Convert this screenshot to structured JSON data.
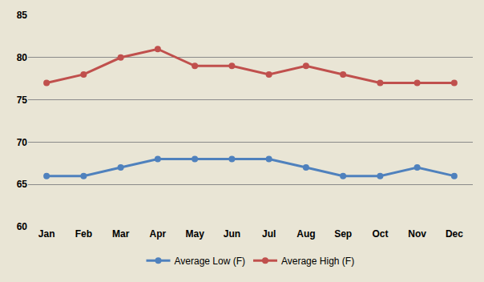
{
  "chart_data": {
    "type": "line",
    "categories": [
      "Jan",
      "Feb",
      "Mar",
      "Apr",
      "May",
      "Jun",
      "Jul",
      "Aug",
      "Sep",
      "Oct",
      "Nov",
      "Dec"
    ],
    "series": [
      {
        "name": "Average Low (F)",
        "color": "#4f81bd",
        "marker": "circle",
        "line_style": "solid",
        "values": [
          66,
          66,
          67,
          68,
          68,
          68,
          68,
          67,
          66,
          66,
          67,
          66
        ]
      },
      {
        "name": "Average High (F)",
        "color": "#c0504d",
        "marker": "circle",
        "line_style": "solid",
        "values": [
          77,
          78,
          80,
          81,
          79,
          79,
          78,
          79,
          78,
          77,
          77,
          77
        ]
      }
    ],
    "ylim": [
      60,
      85
    ],
    "yticks": [
      60,
      65,
      70,
      75,
      80,
      85
    ],
    "grid": true,
    "legend": "bottom"
  }
}
